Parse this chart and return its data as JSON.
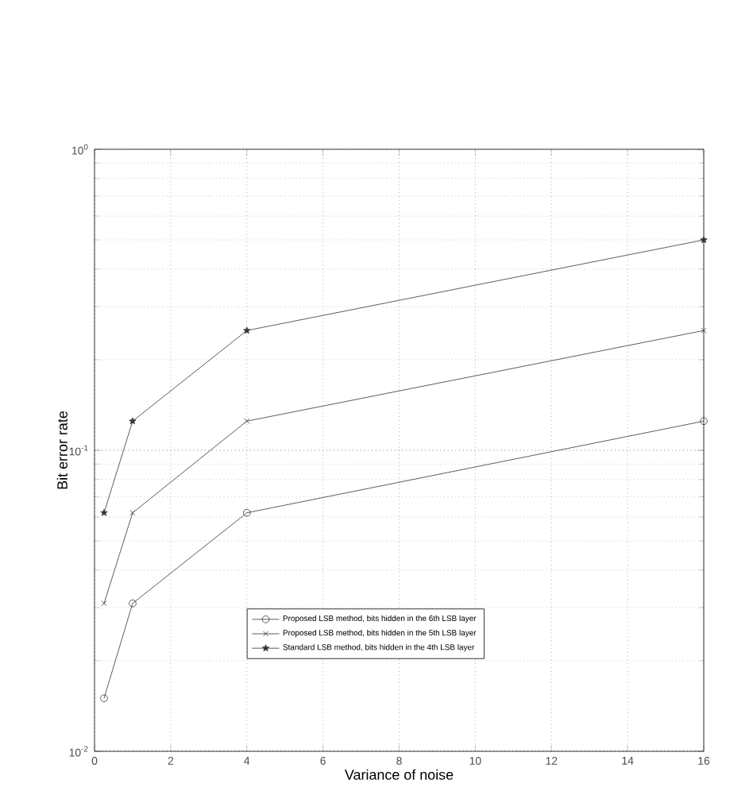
{
  "chart_data": {
    "type": "line",
    "xlabel": "Variance of noise",
    "ylabel": "Bit error rate",
    "log": "y",
    "grid": true,
    "legend": "bottom",
    "line_style": "solid",
    "xlim": [
      0,
      16
    ],
    "xticks": [
      0,
      2,
      4,
      6,
      8,
      10,
      12,
      14,
      16
    ],
    "ylim": [
      0.01,
      1
    ],
    "yticks": [
      {
        "value": 0.01,
        "label": "10$^{-2}$"
      },
      {
        "value": 0.1,
        "label": "10$^{-1}$"
      },
      {
        "value": 1,
        "label": "10$^{0}$"
      }
    ],
    "x": [
      0.25,
      1,
      4,
      16
    ],
    "series": [
      {
        "name": "Proposed LSB method, bits hidden in the 6th LSB layer",
        "color": "#333333",
        "marker": "circle",
        "values": [
          0.015,
          0.031,
          0.062,
          0.125
        ]
      },
      {
        "name": "Proposed LSB method, bits hidden in the 5th LSB layer",
        "color": "#333333",
        "marker": "cross",
        "values": [
          0.031,
          0.062,
          0.125,
          0.25
        ]
      },
      {
        "name": "Standard LSB method, bits hidden in the 4th LSB layer",
        "color": "#333333",
        "marker": "star",
        "values": [
          0.062,
          0.125,
          0.25,
          0.5
        ]
      }
    ]
  }
}
